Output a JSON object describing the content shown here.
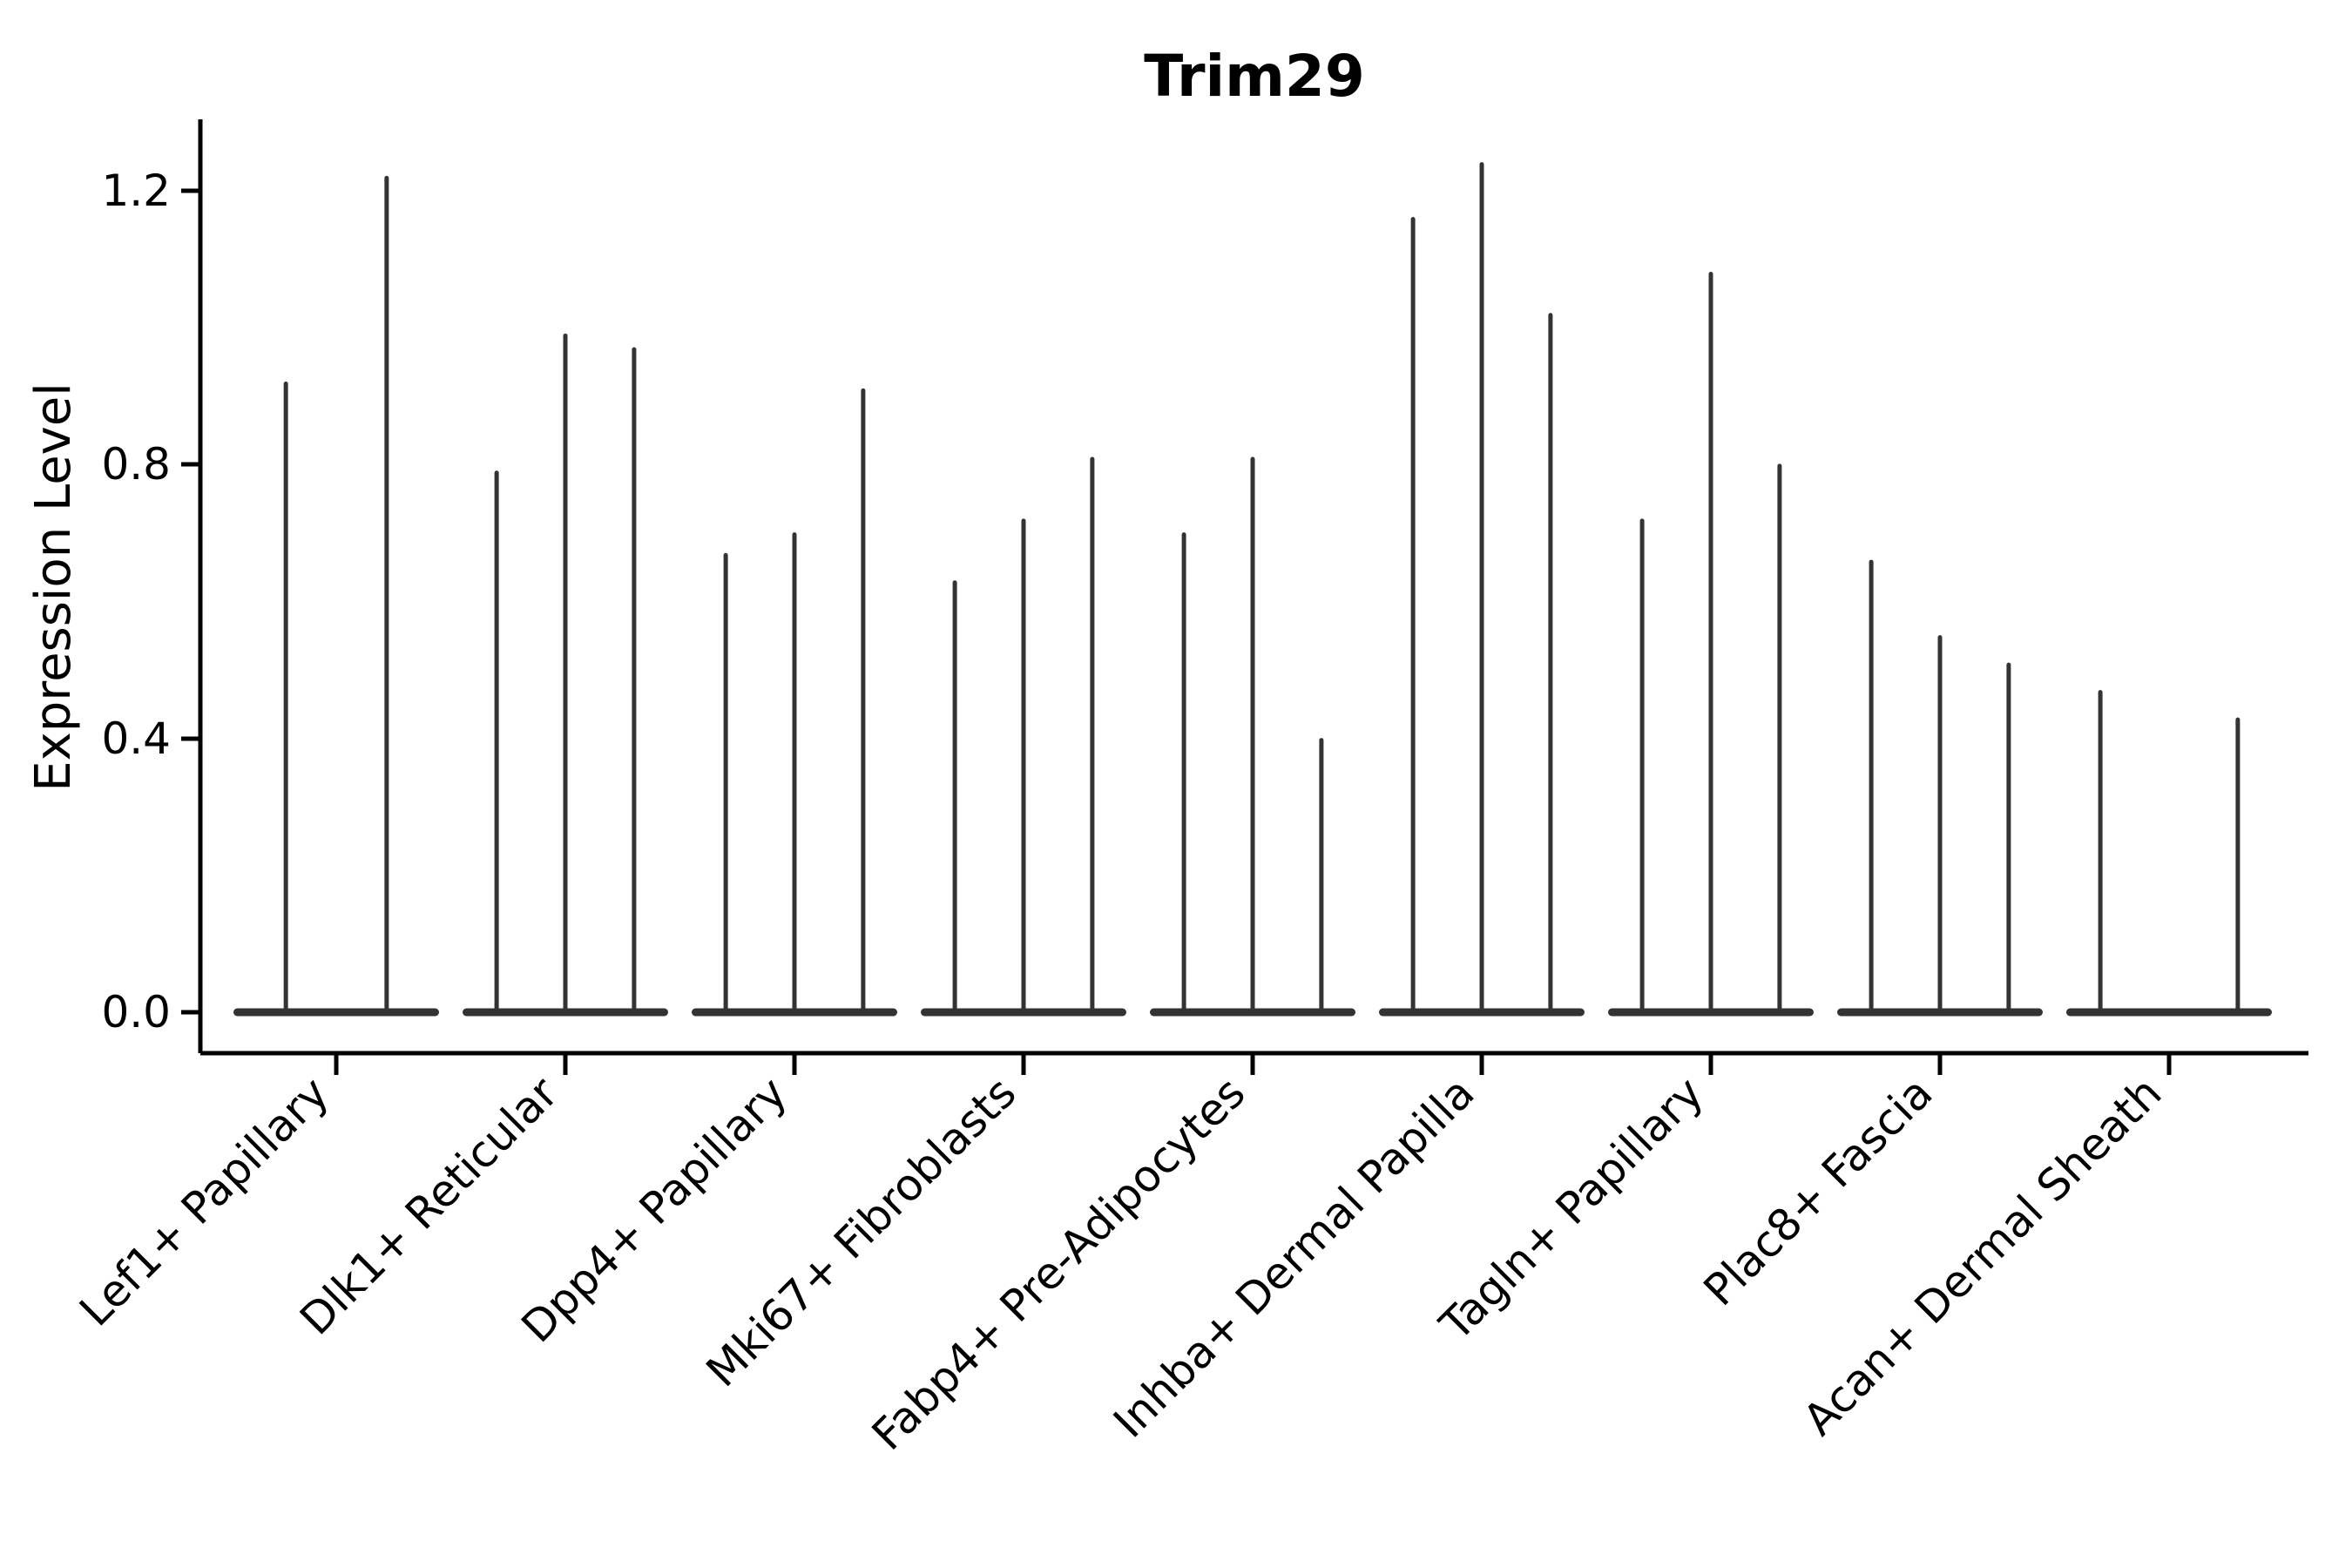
{
  "title": "Trim29",
  "axes": {
    "ylabel": "Expression Level",
    "ytick_labels": [
      "0.0",
      "0.4",
      "0.8",
      "1.2"
    ]
  },
  "chart_data": {
    "type": "violin",
    "title": "Trim29",
    "xlabel": "",
    "ylabel": "Expression Level",
    "yticks": [
      0.0,
      0.4,
      0.8,
      1.2
    ],
    "ylim": [
      -0.06,
      1.3
    ],
    "grid": false,
    "legend": false,
    "violin_color": "#333333",
    "categories": [
      "Lef1+ Papillary",
      "Dlk1+ Reticular",
      "Dpp4+ Papillary",
      "Mki67+ Fibroblasts",
      "Fabp4+ Pre-Adipocytes",
      "Inhba+ Dermal Papilla",
      "Tagln+ Papillary",
      "Plac8+ Fascia",
      "Acan+ Dermal Sheath"
    ],
    "series": [
      {
        "category": "Lef1+ Papillary",
        "violins": [
          {
            "pos": -0.22,
            "max": 0.92
          },
          {
            "pos": 0.22,
            "max": 1.22
          }
        ]
      },
      {
        "category": "Dlk1+ Reticular",
        "violins": [
          {
            "pos": -0.3,
            "max": 0.79
          },
          {
            "pos": 0.0,
            "max": 0.99
          },
          {
            "pos": 0.3,
            "max": 0.97
          }
        ]
      },
      {
        "category": "Dpp4+ Papillary",
        "violins": [
          {
            "pos": -0.3,
            "max": 0.67
          },
          {
            "pos": 0.0,
            "max": 0.7
          },
          {
            "pos": 0.3,
            "max": 0.91
          }
        ]
      },
      {
        "category": "Mki67+ Fibroblasts",
        "violins": [
          {
            "pos": -0.3,
            "max": 0.63
          },
          {
            "pos": 0.0,
            "max": 0.72
          },
          {
            "pos": 0.3,
            "max": 0.81
          }
        ]
      },
      {
        "category": "Fabp4+ Pre-Adipocytes",
        "violins": [
          {
            "pos": -0.3,
            "max": 0.7
          },
          {
            "pos": 0.0,
            "max": 0.81
          },
          {
            "pos": 0.3,
            "max": 0.4
          }
        ]
      },
      {
        "category": "Inhba+ Dermal Papilla",
        "violins": [
          {
            "pos": -0.3,
            "max": 1.16
          },
          {
            "pos": 0.0,
            "max": 1.24
          },
          {
            "pos": 0.3,
            "max": 1.02
          }
        ]
      },
      {
        "category": "Tagln+ Papillary",
        "violins": [
          {
            "pos": -0.3,
            "max": 0.72
          },
          {
            "pos": 0.0,
            "max": 1.08
          },
          {
            "pos": 0.3,
            "max": 0.8
          }
        ]
      },
      {
        "category": "Plac8+ Fascia",
        "violins": [
          {
            "pos": -0.3,
            "max": 0.66
          },
          {
            "pos": 0.0,
            "max": 0.55
          },
          {
            "pos": 0.3,
            "max": 0.51
          }
        ]
      },
      {
        "category": "Acan+ Dermal Sheath",
        "violins": [
          {
            "pos": -0.3,
            "max": 0.47
          },
          {
            "pos": 0.3,
            "max": 0.43
          }
        ]
      }
    ]
  }
}
